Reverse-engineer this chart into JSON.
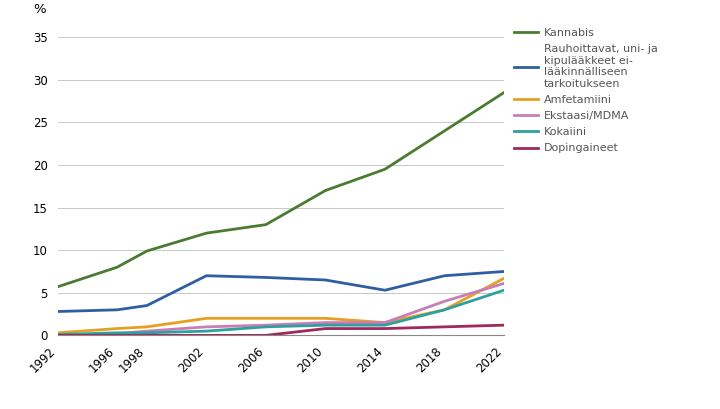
{
  "years": [
    1992,
    1996,
    1998,
    2002,
    2006,
    2010,
    2014,
    2018,
    2022
  ],
  "series": [
    {
      "label": "Kannabis",
      "values": [
        5.7,
        8.0,
        9.9,
        12.0,
        13.0,
        17.0,
        19.5,
        24.0,
        28.5
      ],
      "color": "#4a7c2f",
      "linewidth": 2.0
    },
    {
      "label": "Rauhoittavat, uni- ja\nkipulääkkeet ei-\nlääkinnälliseen\ntarkoitukseen",
      "values": [
        2.8,
        3.0,
        3.5,
        7.0,
        6.8,
        6.5,
        5.3,
        7.0,
        7.5
      ],
      "color": "#2e5fa3",
      "linewidth": 2.0
    },
    {
      "label": "Amfetamiini",
      "values": [
        0.3,
        0.8,
        1.0,
        2.0,
        2.0,
        2.0,
        1.5,
        3.0,
        6.7
      ],
      "color": "#e6a020",
      "linewidth": 2.0
    },
    {
      "label": "Ekstaasi/MDMA",
      "values": [
        0.0,
        0.2,
        0.5,
        1.0,
        1.2,
        1.5,
        1.5,
        4.0,
        6.1
      ],
      "color": "#c87db8",
      "linewidth": 2.0
    },
    {
      "label": "Kokaiini",
      "values": [
        0.1,
        0.3,
        0.3,
        0.5,
        1.0,
        1.2,
        1.2,
        3.0,
        5.3
      ],
      "color": "#2ea0a0",
      "linewidth": 2.0
    },
    {
      "label": "Dopingaineet",
      "values": [
        0.0,
        0.0,
        0.0,
        0.0,
        0.0,
        0.8,
        0.8,
        1.0,
        1.2
      ],
      "color": "#a0285a",
      "linewidth": 2.0
    }
  ],
  "ylim": [
    0,
    36
  ],
  "yticks": [
    0,
    5,
    10,
    15,
    20,
    25,
    30,
    35
  ],
  "ylabel": "%",
  "background_color": "#ffffff",
  "grid_color": "#c8c8c8",
  "legend_fontsize": 8.0,
  "axis_fontsize": 8.5,
  "figsize": [
    7.2,
    4.09
  ],
  "dpi": 100
}
